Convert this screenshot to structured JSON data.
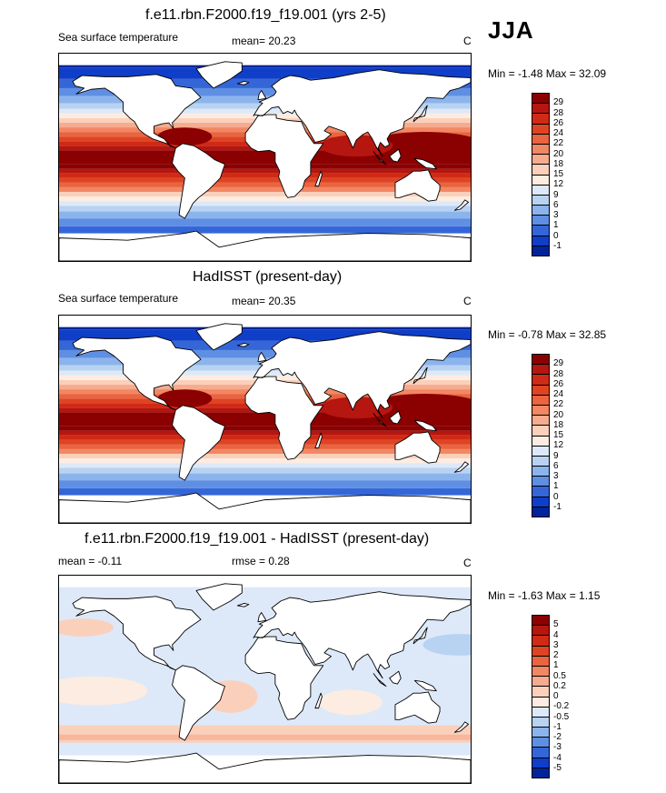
{
  "season": "JJA",
  "panels": [
    {
      "title": "f.e11.rbn.F2000.f19_f19.001 (yrs 2-5)",
      "left_label": "Sea surface temperature",
      "center_label": "mean=  20.23",
      "unit": "C",
      "minmax": "Min = -1.48 Max = 32.09",
      "colorbar_labels": [
        "29",
        "28",
        "26",
        "24",
        "22",
        "20",
        "18",
        "15",
        "12",
        "9",
        "6",
        "3",
        "1",
        "0",
        "-1"
      ],
      "colors": [
        "#8b0000",
        "#b5160f",
        "#cf2a16",
        "#de4423",
        "#ea6440",
        "#f28763",
        "#f7ab8e",
        "#fbd0bb",
        "#fdece1",
        "#dde9f8",
        "#b8d2f2",
        "#8cb4ec",
        "#5f8fe3",
        "#3566d8",
        "#0f3ec9",
        "#00259a"
      ]
    },
    {
      "title": "HadISST (present-day)",
      "left_label": "Sea surface temperature",
      "center_label": "mean=  20.35",
      "unit": "C",
      "minmax": "Min = -0.78 Max = 32.85",
      "colorbar_labels": [
        "29",
        "28",
        "26",
        "24",
        "22",
        "20",
        "18",
        "15",
        "12",
        "9",
        "6",
        "3",
        "1",
        "0",
        "-1"
      ],
      "colors": [
        "#8b0000",
        "#b5160f",
        "#cf2a16",
        "#de4423",
        "#ea6440",
        "#f28763",
        "#f7ab8e",
        "#fbd0bb",
        "#fdece1",
        "#dde9f8",
        "#b8d2f2",
        "#8cb4ec",
        "#5f8fe3",
        "#3566d8",
        "#0f3ec9",
        "#00259a"
      ]
    },
    {
      "title": "f.e11.rbn.F2000.f19_f19.001 - HadISST (present-day)",
      "left_label": "mean = -0.11",
      "center_label": "rmse =   0.28",
      "unit": "C",
      "minmax": "Min = -1.63 Max =  1.15",
      "colorbar_labels": [
        "5",
        "4",
        "3",
        "2",
        "1",
        "0.5",
        "0.2",
        "0",
        "-0.2",
        "-0.5",
        "-1",
        "-2",
        "-3",
        "-4",
        "-5"
      ],
      "colors": [
        "#8b0000",
        "#b5160f",
        "#cf2a16",
        "#de4423",
        "#ea6440",
        "#f28763",
        "#f7ab8e",
        "#fbd0bb",
        "#fdece1",
        "#dde9f8",
        "#b8d2f2",
        "#8cb4ec",
        "#5f8fe3",
        "#3566d8",
        "#0f3ec9",
        "#00259a"
      ]
    }
  ]
}
